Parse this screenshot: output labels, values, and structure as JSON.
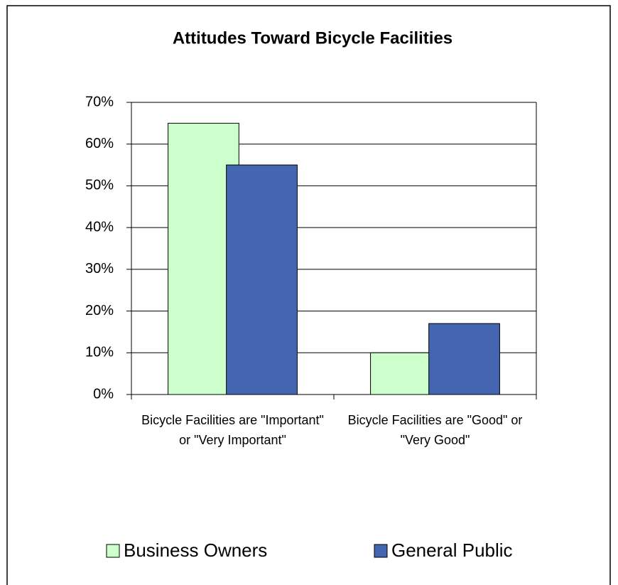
{
  "chart_data": {
    "type": "bar",
    "title": "Attitudes Toward Bicycle Facilities",
    "categories": [
      "Bicycle Facilities are \"Important\" or \"Very Important\"",
      "Bicycle Facilities are \"Good\" or \"Very Good\""
    ],
    "series": [
      {
        "name": "Business Owners",
        "color": "#ccffcc",
        "values": [
          65,
          10
        ]
      },
      {
        "name": "General Public",
        "color": "#4466b0",
        "values": [
          55,
          17
        ]
      }
    ],
    "ylim": [
      0,
      70
    ],
    "yticks": [
      {
        "value": 0,
        "label": "0%"
      },
      {
        "value": 10,
        "label": "10%"
      },
      {
        "value": 20,
        "label": "20%"
      },
      {
        "value": 30,
        "label": "30%"
      },
      {
        "value": 40,
        "label": "40%"
      },
      {
        "value": 50,
        "label": "50%"
      },
      {
        "value": 60,
        "label": "60%"
      },
      {
        "value": 70,
        "label": "70%"
      }
    ],
    "grid": true,
    "legend": "bottom"
  }
}
